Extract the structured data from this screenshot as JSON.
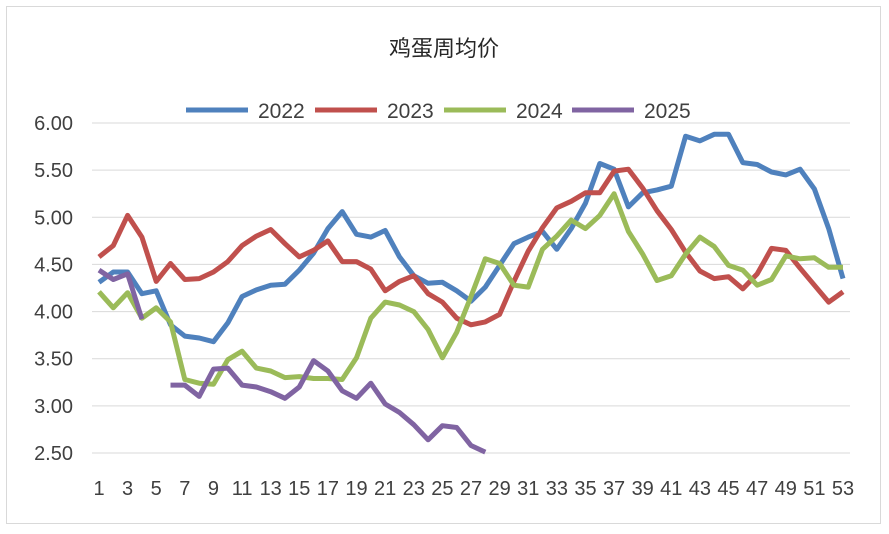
{
  "chart_data": {
    "type": "line",
    "title": "鸡蛋周均价",
    "xlabel": "",
    "ylabel": "",
    "x": [
      1,
      2,
      3,
      4,
      5,
      6,
      7,
      8,
      9,
      10,
      11,
      12,
      13,
      14,
      15,
      16,
      17,
      18,
      19,
      20,
      21,
      22,
      23,
      24,
      25,
      26,
      27,
      28,
      29,
      30,
      31,
      32,
      33,
      34,
      35,
      36,
      37,
      38,
      39,
      40,
      41,
      42,
      43,
      44,
      45,
      46,
      47,
      48,
      49,
      50,
      51,
      52,
      53
    ],
    "x_tick_labels": [
      "1",
      "3",
      "5",
      "7",
      "9",
      "11",
      "13",
      "15",
      "17",
      "19",
      "21",
      "23",
      "25",
      "27",
      "29",
      "31",
      "33",
      "35",
      "37",
      "39",
      "41",
      "43",
      "45",
      "47",
      "49",
      "51",
      "53"
    ],
    "ylim": [
      2.5,
      6.0
    ],
    "y_ticks": [
      2.5,
      3.0,
      3.5,
      4.0,
      4.5,
      5.0,
      5.5,
      6.0
    ],
    "y_tick_labels": [
      "2.50",
      "3.00",
      "3.50",
      "4.00",
      "4.50",
      "5.00",
      "5.50",
      "6.00"
    ],
    "grid": true,
    "legend_position": "top-center",
    "series": [
      {
        "name": "2022",
        "color": "#4F81BD",
        "values": [
          4.31,
          4.42,
          4.42,
          4.19,
          4.22,
          3.86,
          3.74,
          3.72,
          3.68,
          3.88,
          4.16,
          4.23,
          4.28,
          4.29,
          4.44,
          4.62,
          4.88,
          5.06,
          4.82,
          4.79,
          4.86,
          4.58,
          4.38,
          4.3,
          4.31,
          4.22,
          4.11,
          4.26,
          4.49,
          4.72,
          4.79,
          4.85,
          4.66,
          4.88,
          5.15,
          5.57,
          5.51,
          5.11,
          5.26,
          5.29,
          5.33,
          5.86,
          5.81,
          5.88,
          5.88,
          5.58,
          5.56,
          5.48,
          5.45,
          5.51,
          5.3,
          4.88,
          4.35
        ]
      },
      {
        "name": "2023",
        "color": "#C0504D",
        "values": [
          4.58,
          4.7,
          5.02,
          4.79,
          4.32,
          4.51,
          4.34,
          4.35,
          4.42,
          4.53,
          4.7,
          4.8,
          4.87,
          4.72,
          4.58,
          4.65,
          4.75,
          4.53,
          4.53,
          4.45,
          4.22,
          4.32,
          4.38,
          4.19,
          4.1,
          3.93,
          3.86,
          3.89,
          3.97,
          4.32,
          4.64,
          4.89,
          5.1,
          5.17,
          5.26,
          5.26,
          5.49,
          5.51,
          5.31,
          5.07,
          4.87,
          4.63,
          4.43,
          4.35,
          4.37,
          4.24,
          4.4,
          4.67,
          4.65,
          4.46,
          4.28,
          4.1,
          4.21
        ]
      },
      {
        "name": "2024",
        "color": "#9BBB59",
        "values": [
          4.21,
          4.04,
          4.2,
          3.93,
          4.04,
          3.89,
          3.28,
          3.24,
          3.23,
          3.49,
          3.58,
          3.4,
          3.37,
          3.3,
          3.31,
          3.29,
          3.29,
          3.28,
          3.51,
          3.93,
          4.1,
          4.07,
          4.0,
          3.81,
          3.51,
          3.78,
          4.16,
          4.56,
          4.51,
          4.28,
          4.26,
          4.66,
          4.8,
          4.97,
          4.88,
          5.02,
          5.25,
          4.85,
          4.61,
          4.33,
          4.38,
          4.61,
          4.79,
          4.69,
          4.49,
          4.44,
          4.28,
          4.34,
          4.59,
          4.56,
          4.57,
          4.47,
          4.47
        ]
      },
      {
        "name": "2025",
        "color": "#8064A2",
        "values": [
          4.44,
          4.34,
          4.4,
          3.92,
          null,
          3.22,
          3.22,
          3.1,
          3.39,
          3.4,
          3.22,
          3.2,
          3.15,
          3.08,
          3.2,
          3.48,
          3.37,
          3.16,
          3.08,
          3.24,
          3.02,
          2.93,
          2.8,
          2.64,
          2.79,
          2.77,
          2.58,
          2.51,
          null,
          null,
          null,
          null,
          null,
          null,
          null,
          null,
          null,
          null,
          null,
          null,
          null,
          null,
          null,
          null,
          null,
          null,
          null,
          null,
          null,
          null,
          null,
          null,
          null
        ]
      }
    ]
  }
}
